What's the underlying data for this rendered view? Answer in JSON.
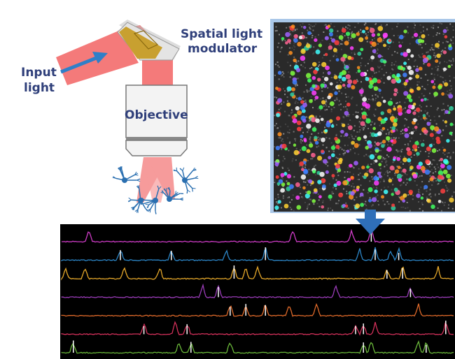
{
  "labels": {
    "input_light": [
      "Input",
      "light"
    ],
    "slm": [
      "Spatial light",
      "modulator"
    ],
    "objective": "Objective"
  },
  "colors": {
    "beam": "#f47a7a",
    "label": "#2f3f7a",
    "arrow": "#2f7fc8",
    "neuron": "#2a6fb0",
    "slm_chip": "#c8a030",
    "panel_border": "#a9c7e8"
  },
  "traces": [
    {
      "color": "#d03cc8",
      "peaks": [
        7,
        59,
        74,
        79
      ]
    },
    {
      "color": "#2c86c8",
      "peaks": [
        15,
        28,
        42,
        52,
        76,
        80,
        84,
        86
      ]
    },
    {
      "color": "#e6a82a",
      "peaks": [
        1,
        6,
        16,
        25,
        44,
        47,
        50,
        83,
        87,
        96
      ]
    },
    {
      "color": "#9a3cb8",
      "peaks": [
        36,
        40,
        70,
        89
      ]
    },
    {
      "color": "#e06a2a",
      "peaks": [
        43,
        47,
        52,
        58,
        65,
        91
      ]
    },
    {
      "color": "#d2305a",
      "peaks": [
        21,
        29,
        32,
        75,
        77,
        80,
        98
      ]
    },
    {
      "color": "#6ab83a",
      "peaks": [
        3,
        30,
        33,
        43,
        77,
        79,
        91,
        93
      ]
    }
  ],
  "cell_colors": [
    "#ff4040",
    "#40ff60",
    "#4080ff",
    "#ffd030",
    "#ff40ff",
    "#40ffff",
    "#ff9020",
    "#a060ff",
    "#80ff40",
    "#ff6090",
    "#30d0a0",
    "#ffffff"
  ]
}
